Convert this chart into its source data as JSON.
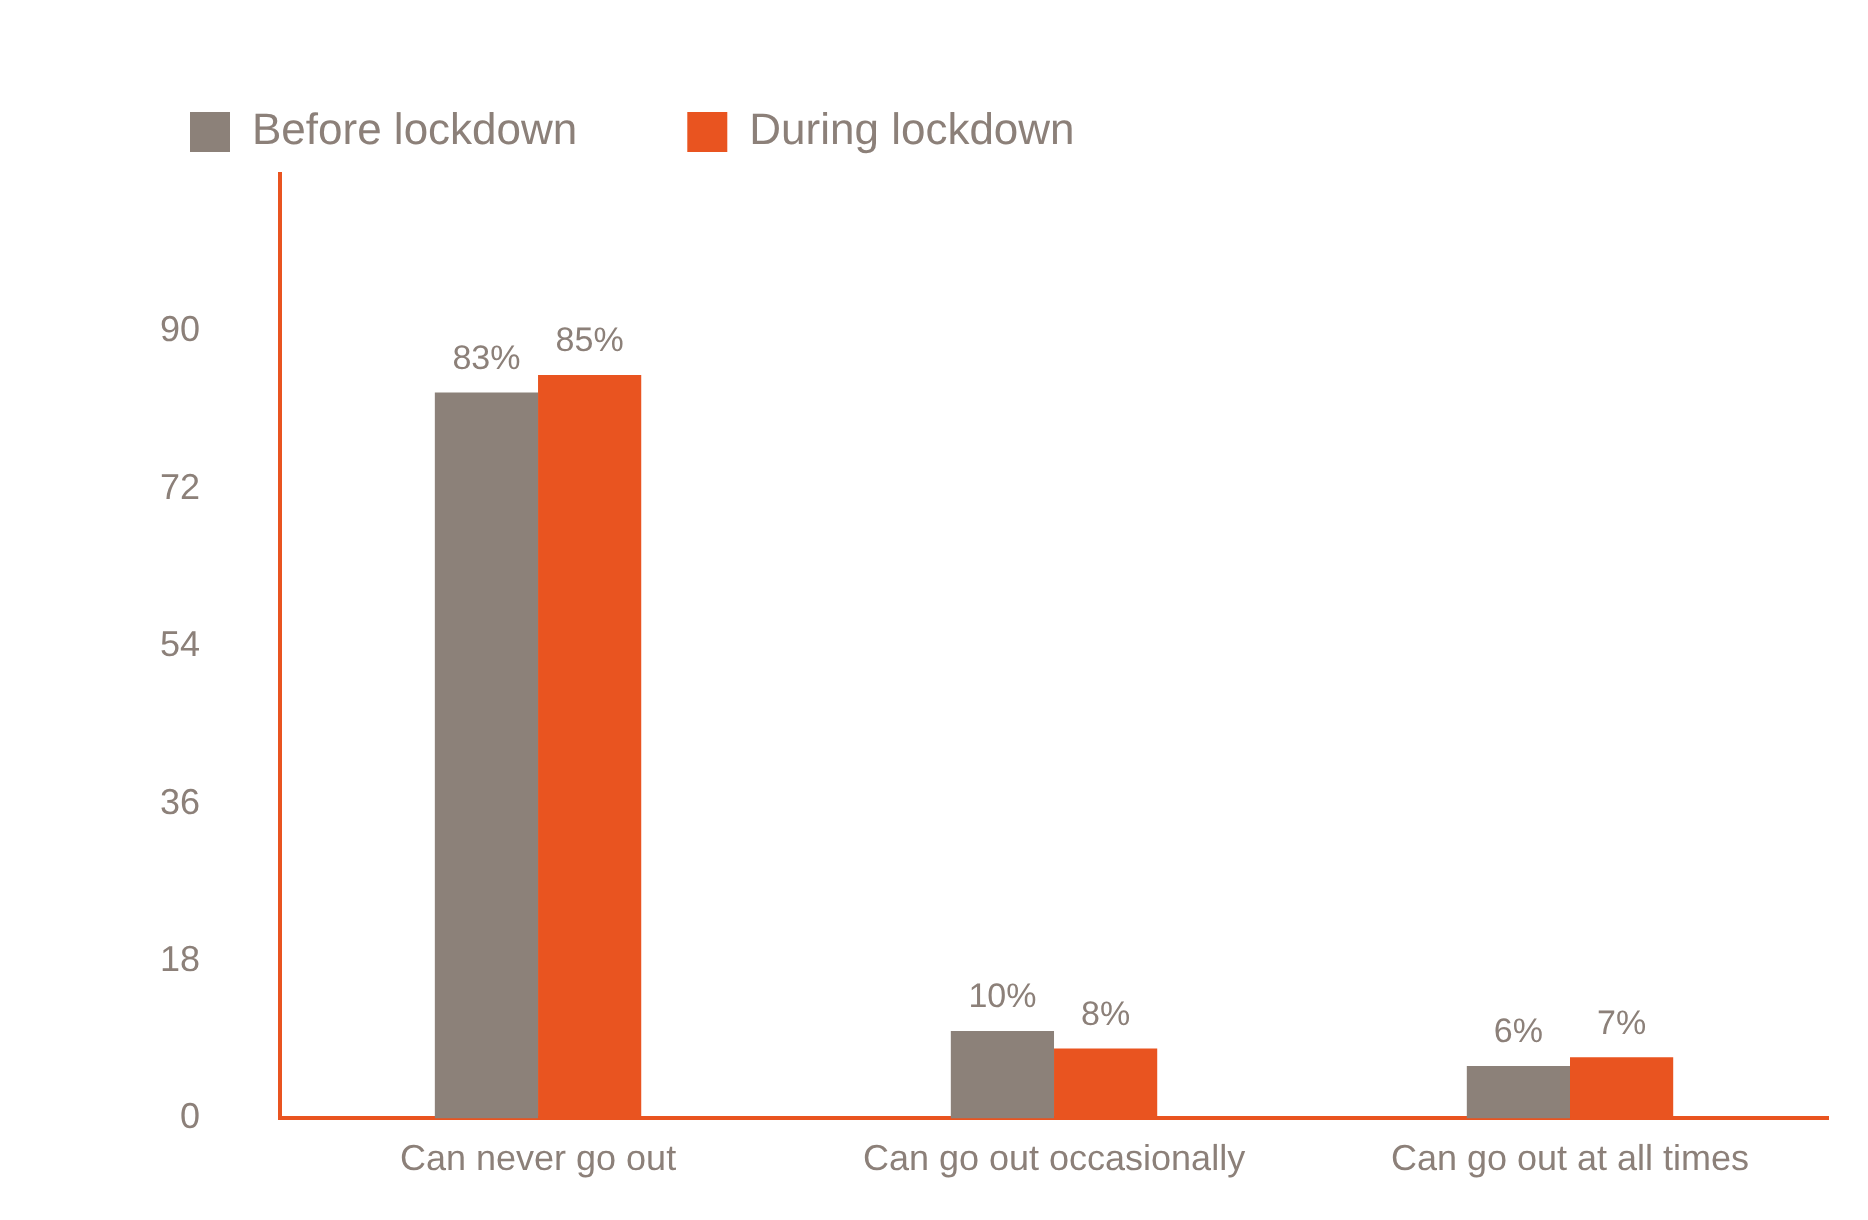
{
  "chart_data": {
    "type": "bar",
    "categories": [
      "Can never go out",
      "Can go out occasionally",
      "Can go out at all times"
    ],
    "series": [
      {
        "name": "Before lockdown",
        "color": "#8c8179",
        "values": [
          83,
          10,
          6
        ],
        "value_labels": [
          "83%",
          "10%",
          "6%"
        ]
      },
      {
        "name": "During lockdown",
        "color": "#e95420",
        "values": [
          85,
          8,
          7
        ],
        "value_labels": [
          "85%",
          "8%",
          "7%"
        ]
      }
    ],
    "ylim": [
      0,
      108
    ],
    "yticks": [
      0,
      18,
      36,
      54,
      72,
      90
    ],
    "grid": false,
    "legend": "top left"
  }
}
